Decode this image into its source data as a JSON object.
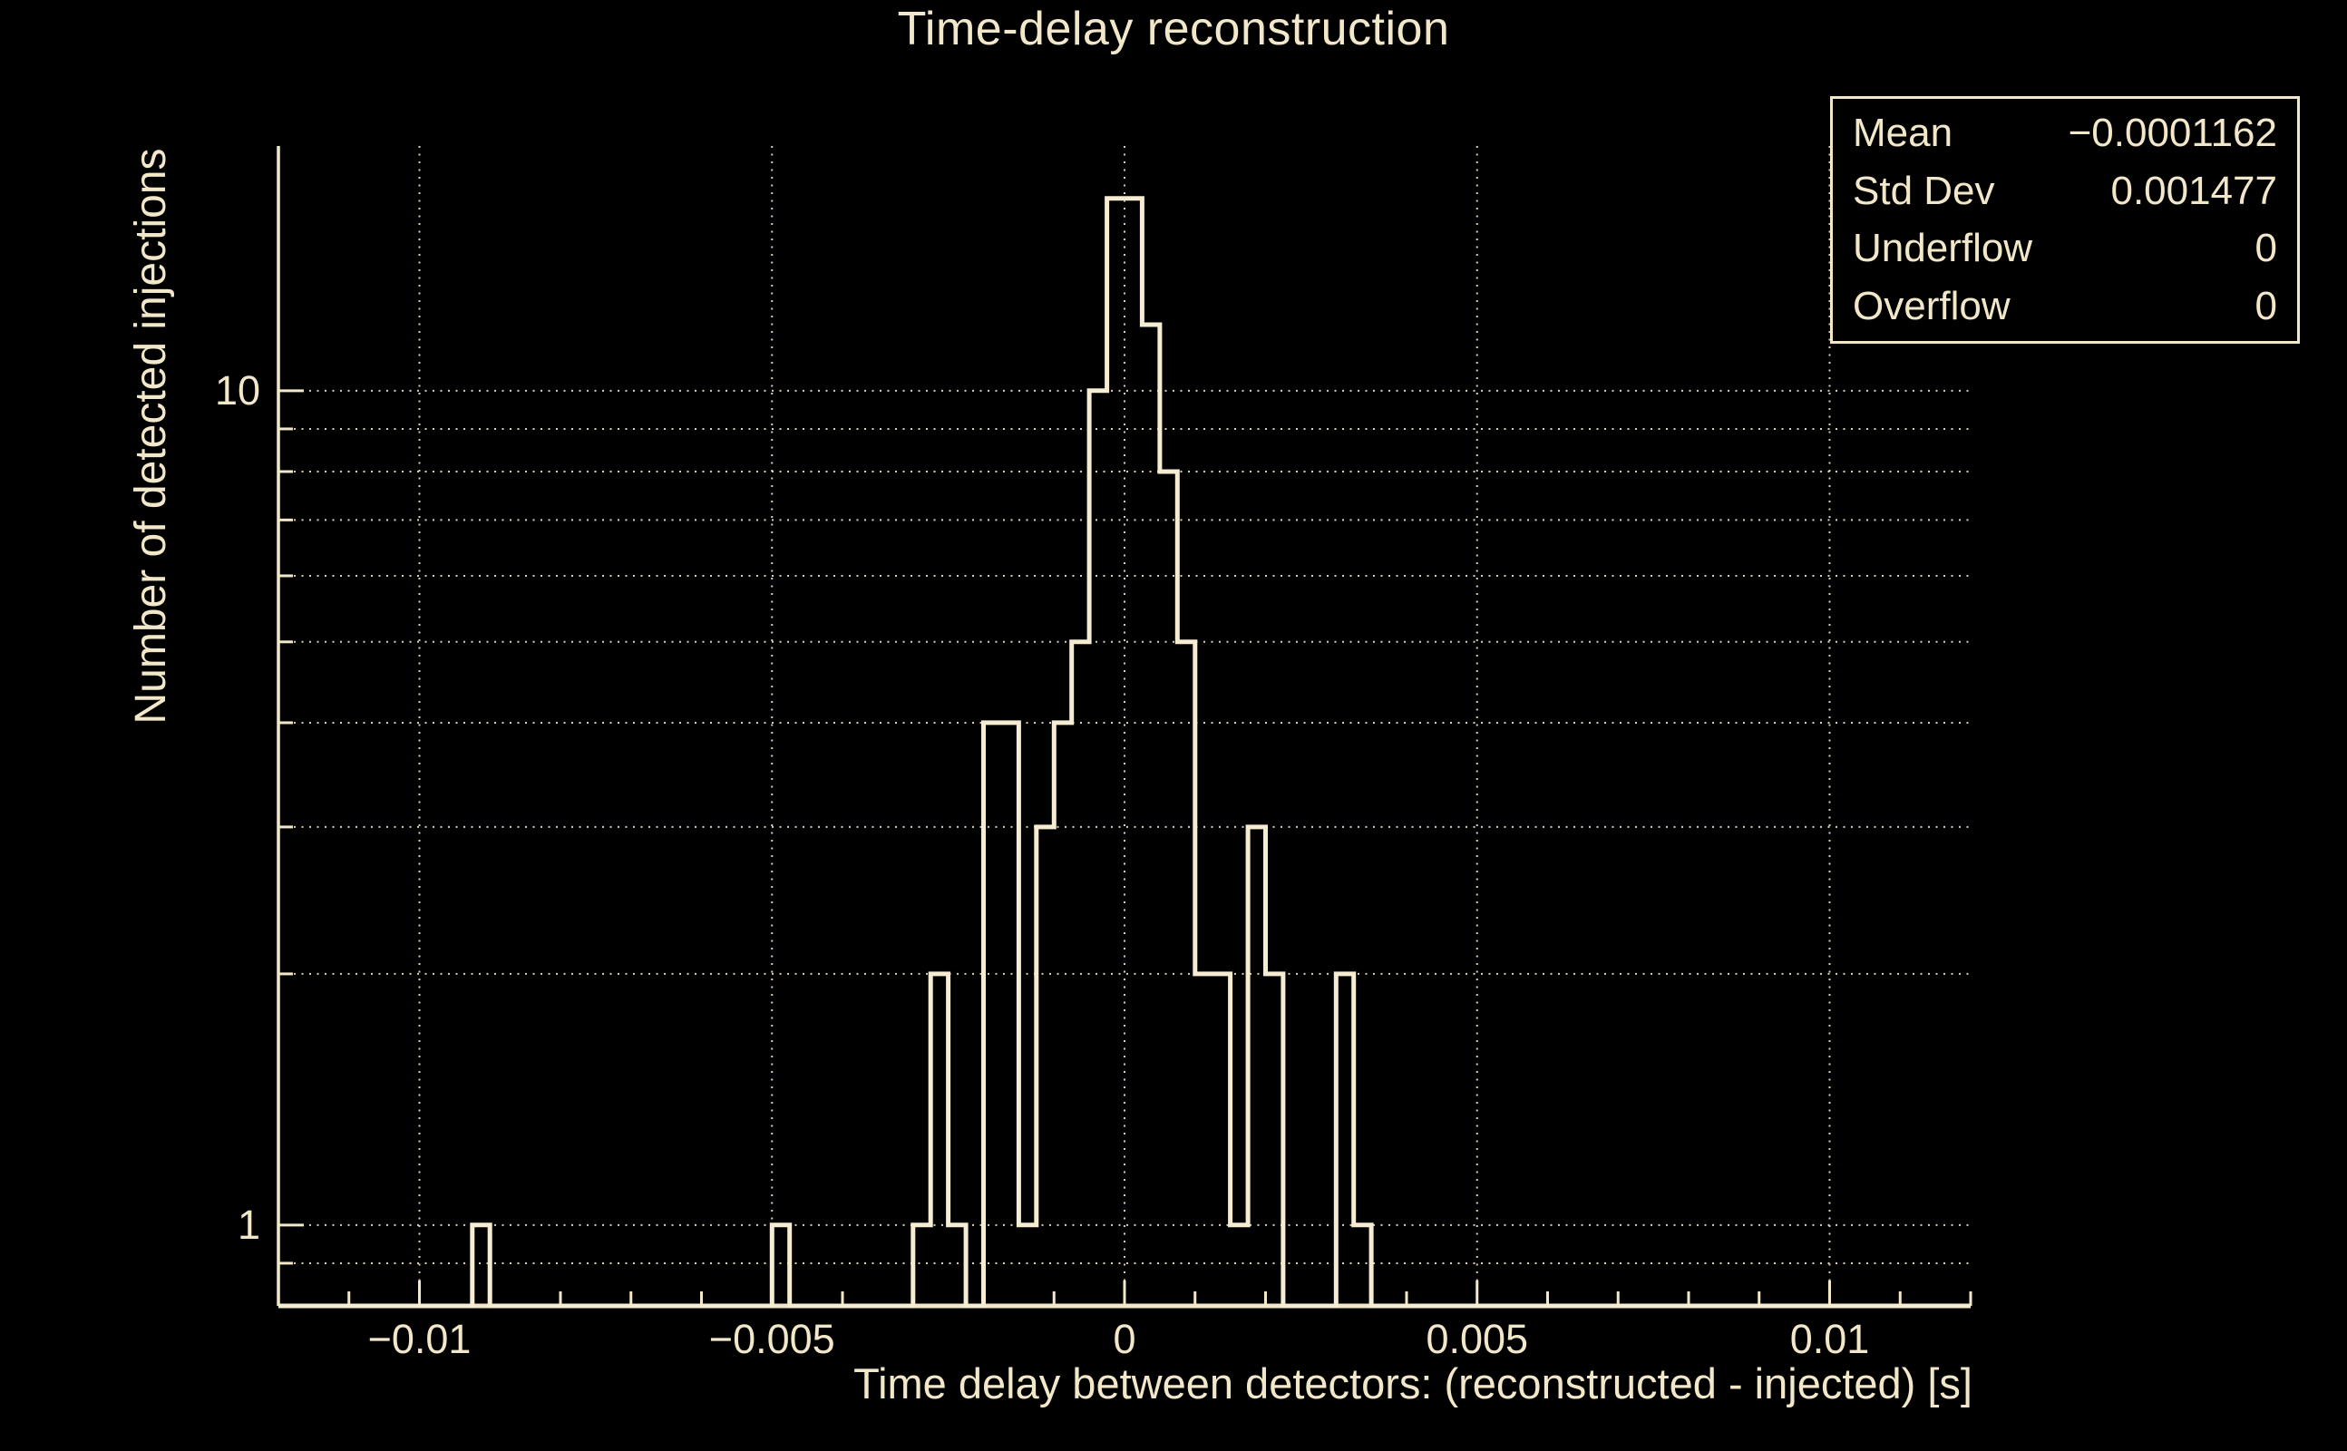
{
  "page": {
    "background_color": "#000000",
    "foreground_color": "#f2e8c9"
  },
  "title": "Time-delay reconstruction",
  "axes": {
    "x": {
      "title": "Time delay between detectors: (reconstructed - injected) [s]",
      "min": -0.012,
      "max": 0.012,
      "major_ticks": [
        -0.01,
        -0.005,
        0,
        0.005,
        0.01
      ],
      "major_tick_labels": [
        "−0.01",
        "−0.005",
        "0",
        "0.005",
        "0.01"
      ],
      "minor_tick_step": 0.001,
      "gridlines_at": [
        -0.01,
        -0.005,
        0,
        0.005,
        0.01
      ],
      "grid_style": "dotted"
    },
    "y": {
      "title": "Number of detected injections",
      "scale": "log",
      "min": 0.8,
      "max": 19.6,
      "labeled_ticks": [
        1,
        10
      ],
      "labeled_tick_labels": [
        "1",
        "10"
      ],
      "gridlines_at": [
        0.9,
        1,
        2,
        3,
        4,
        5,
        6,
        7,
        8,
        9,
        10
      ],
      "grid_style": "dotted"
    }
  },
  "chart_data": {
    "type": "bar",
    "subtype": "step-outline-histogram",
    "title": "Time-delay reconstruction",
    "xlabel": "Time delay between detectors: (reconstructed - injected) [s]",
    "ylabel": "Number of detected injections",
    "x_range": [
      -0.012,
      0.012
    ],
    "ylim": [
      0.8,
      19.6
    ],
    "y_scale": "log",
    "bin_width": 0.00025,
    "nonzero_bins": [
      [
        -0.00925,
        1
      ],
      [
        -0.005,
        1
      ],
      [
        -0.003,
        1
      ],
      [
        -0.00275,
        2
      ],
      [
        -0.0025,
        1
      ],
      [
        -0.002,
        4
      ],
      [
        -0.00175,
        4
      ],
      [
        -0.0015,
        1
      ],
      [
        -0.00125,
        3
      ],
      [
        -0.001,
        4
      ],
      [
        -0.00075,
        5
      ],
      [
        -0.0005,
        10
      ],
      [
        -0.00025,
        17
      ],
      [
        0,
        17
      ],
      [
        0.00025,
        12
      ],
      [
        0.0005,
        8
      ],
      [
        0.00075,
        5
      ],
      [
        0.001,
        2
      ],
      [
        0.00125,
        2
      ],
      [
        0.0015,
        1
      ],
      [
        0.00175,
        3
      ],
      [
        0.002,
        2
      ],
      [
        0.003,
        2
      ],
      [
        0.00325,
        1
      ]
    ],
    "line_color": "#f5ecd2",
    "legend_position": "none",
    "grid": true
  },
  "stats_box": {
    "rows": [
      {
        "label": "Mean",
        "value": "−0.0001162"
      },
      {
        "label": "Std Dev",
        "value": "0.001477"
      },
      {
        "label": "Underflow",
        "value": "0"
      },
      {
        "label": "Overflow",
        "value": "0"
      }
    ]
  }
}
